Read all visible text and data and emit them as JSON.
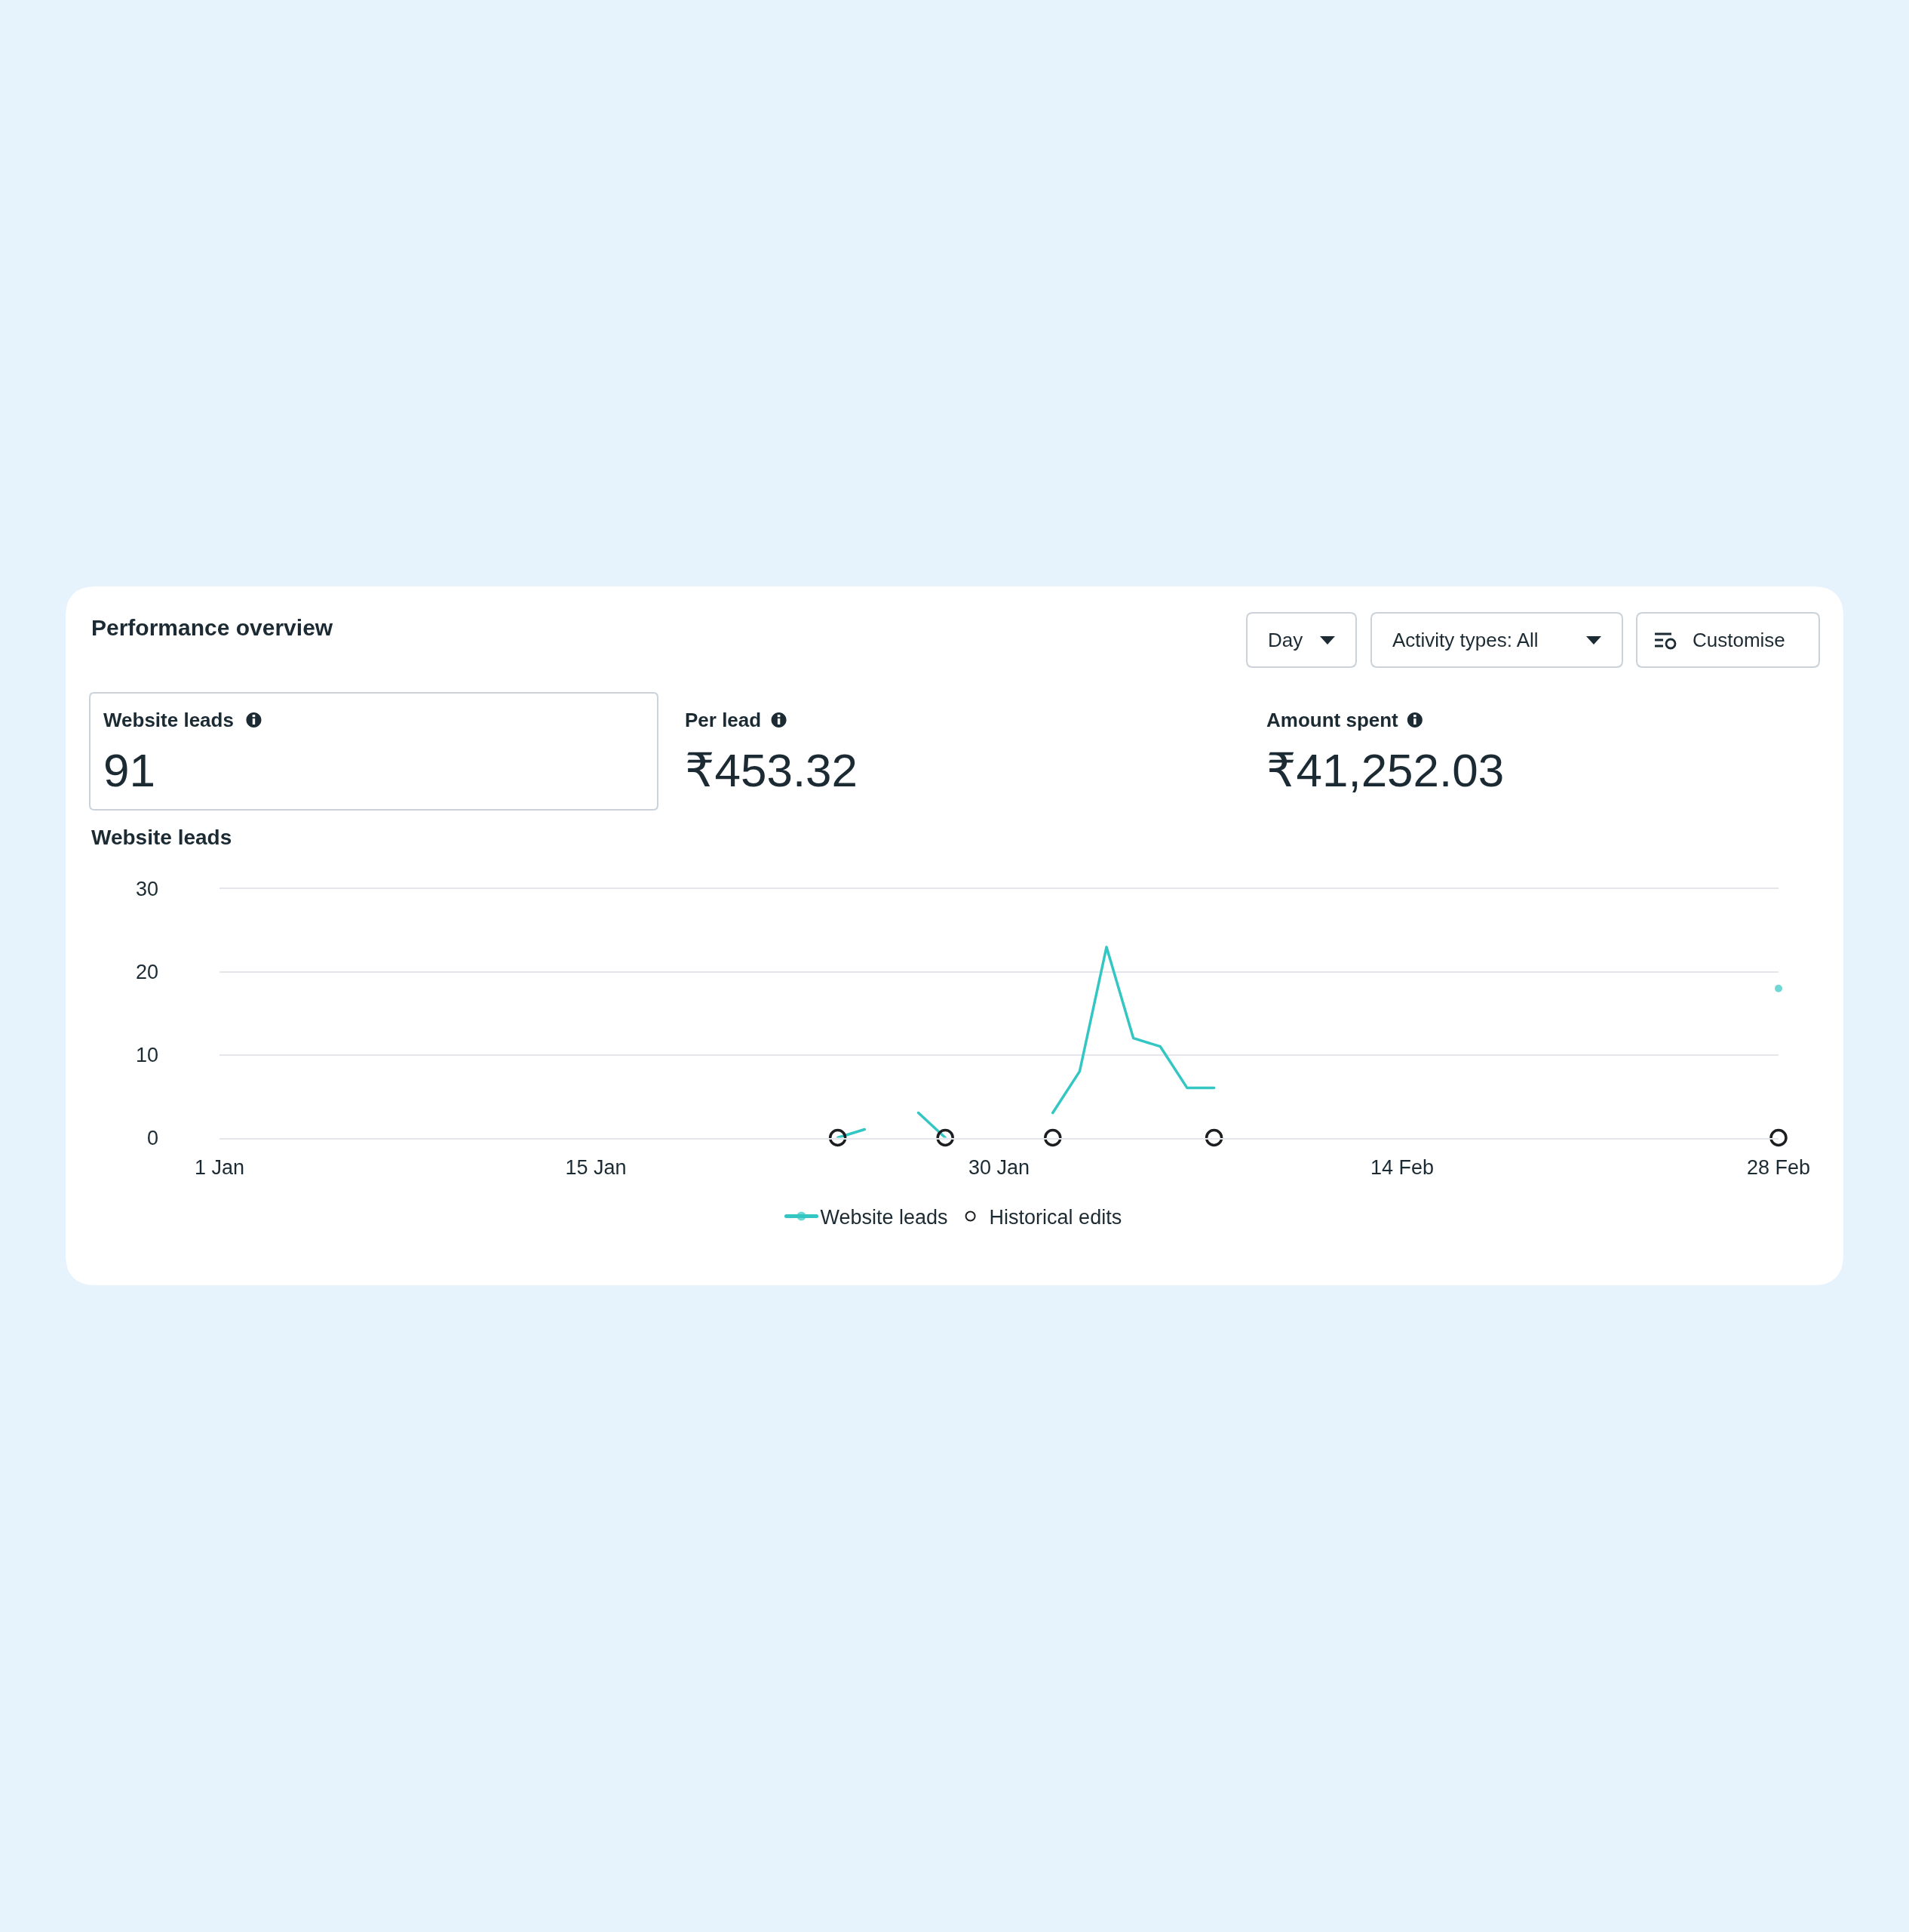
{
  "chart_data": [
    {
      "type": "other",
      "title": "Performance overview",
      "annotations": [
        "Day",
        "Activity types: All",
        "Customise"
      ]
    },
    {
      "type": "other",
      "annotations": [
        "Website leads",
        "91",
        "Per lead",
        "₹453.32",
        "Amount spent",
        "₹41,252.03"
      ]
    },
    {
      "type": "line",
      "title": "Website leads",
      "xlim": [
        "--01-01",
        "--02-28"
      ],
      "xticks": [
        {
          "value": "--01-01",
          "label": "1 Jan"
        },
        {
          "value": "--01-15",
          "label": "15 Jan"
        },
        {
          "value": "--01-30",
          "label": "30 Jan"
        },
        {
          "value": "--02-14",
          "label": "14 Feb"
        },
        {
          "value": "--02-28",
          "label": "28 Feb"
        }
      ],
      "ylim": [
        0,
        30
      ],
      "yticks": [
        0,
        10,
        20,
        30
      ],
      "grid": "y",
      "legend": "bottom",
      "series": [
        {
          "name": "Website leads",
          "color": "#33c6c3",
          "x": [
            "--01-24",
            "--01-25",
            "--01-26",
            "--01-27",
            "--01-28",
            "--01-29",
            "--01-30",
            "--01-31",
            "--02-01",
            "--02-02",
            "--02-03",
            "--02-04",
            "--02-05",
            "--02-06",
            "--02-07",
            "--02-08",
            "--02-28"
          ],
          "values": [
            0,
            1,
            null,
            3,
            0,
            null,
            null,
            null,
            3,
            8,
            23,
            12,
            11,
            6,
            6,
            null,
            18
          ]
        },
        {
          "name": "Historical edits",
          "type": "scatter",
          "marker": "circle",
          "color": "#1c1e21",
          "x": [
            "--01-24",
            "--01-28",
            "--02-01",
            "--02-07",
            "--02-28"
          ],
          "values": [
            0,
            0,
            0,
            0,
            0
          ]
        }
      ]
    }
  ]
}
